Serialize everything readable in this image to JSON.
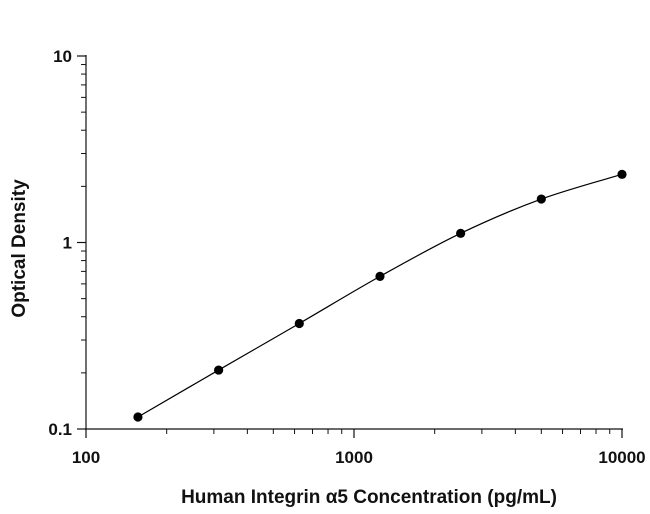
{
  "chart_data": {
    "type": "scatter",
    "title": "",
    "xlabel": "Human Integrin α5 Concentration (pg/mL)",
    "ylabel": "Optical Density",
    "x_scale": "log",
    "y_scale": "log",
    "xlim": [
      100,
      10000
    ],
    "ylim": [
      0.1,
      10
    ],
    "x_ticks": [
      {
        "value": 100,
        "label": "100"
      },
      {
        "value": 1000,
        "label": "1000"
      },
      {
        "value": 10000,
        "label": "10000"
      }
    ],
    "y_ticks": [
      {
        "value": 0.1,
        "label": "0.1"
      },
      {
        "value": 1,
        "label": "1"
      },
      {
        "value": 10,
        "label": "10"
      }
    ],
    "grid": false,
    "legend": "none",
    "series": [
      {
        "points": [
          {
            "x": 156.25,
            "y": 0.116
          },
          {
            "x": 312.5,
            "y": 0.207
          },
          {
            "x": 625,
            "y": 0.368
          },
          {
            "x": 1250,
            "y": 0.658
          },
          {
            "x": 2500,
            "y": 1.12
          },
          {
            "x": 5000,
            "y": 1.71
          },
          {
            "x": 10000,
            "y": 2.32
          }
        ],
        "fit_curve": true
      }
    ],
    "colors": {
      "axis": "#111111",
      "marker": "#000000",
      "curve": "#000000"
    }
  }
}
